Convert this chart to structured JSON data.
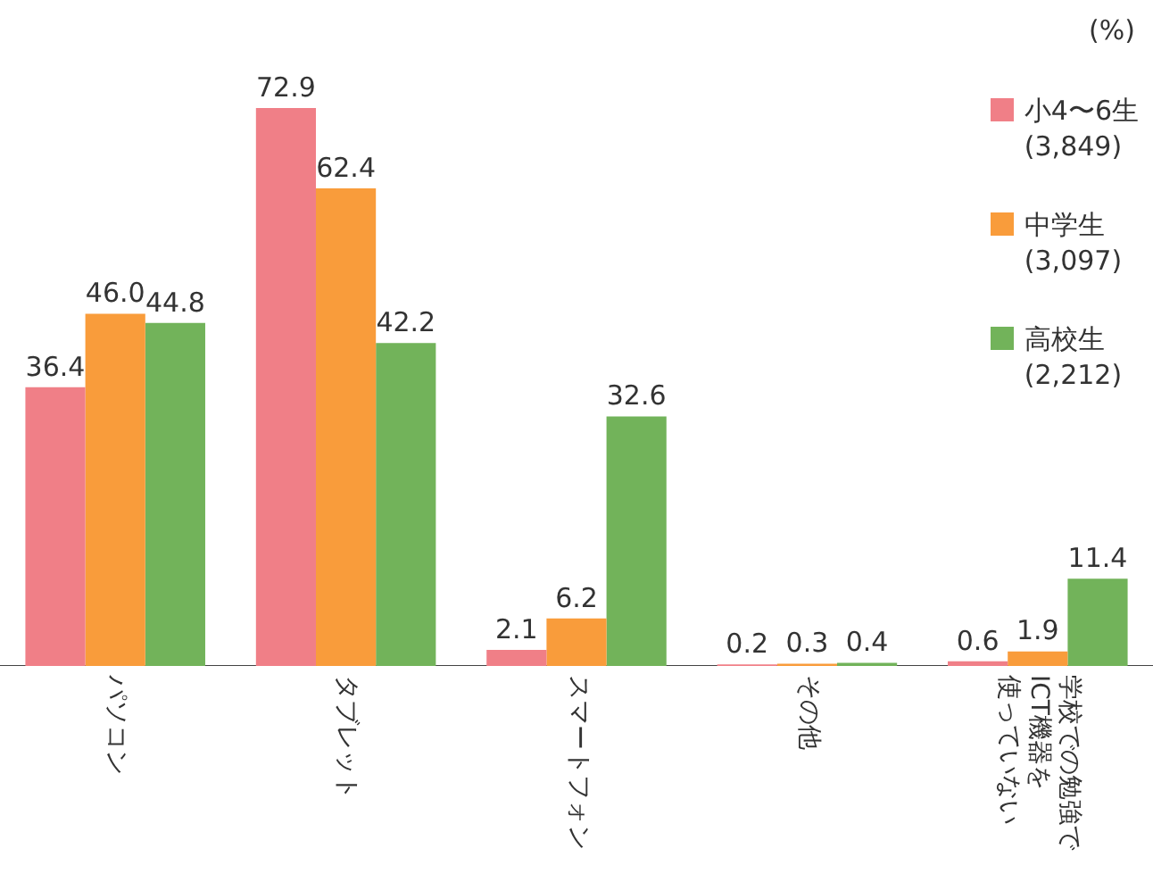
{
  "chart_data": {
    "type": "bar",
    "ylabel": "(%)",
    "categories": [
      "パソコン",
      "タブレット",
      "スマートフォン",
      "その他",
      "学校での勉強でICT機器を使っていない"
    ],
    "series": [
      {
        "name": "小4〜6生\n(3,849)",
        "color": "#f07f87",
        "values": [
          36.4,
          72.9,
          2.1,
          0.2,
          0.6
        ],
        "value_labels": [
          "36.4",
          "72.9",
          "2.1",
          "0.2",
          "0.6"
        ]
      },
      {
        "name": "中学生\n(3,097)",
        "color": "#f99c3b",
        "values": [
          46.0,
          62.4,
          6.2,
          0.3,
          1.9
        ],
        "value_labels": [
          "46.0",
          "62.4",
          "6.2",
          "0.3",
          "1.9"
        ]
      },
      {
        "name": "高校生\n(2,212)",
        "color": "#72b35a",
        "values": [
          44.8,
          42.2,
          32.6,
          0.4,
          11.4
        ],
        "value_labels": [
          "44.8",
          "42.2",
          "32.6",
          "0.4",
          "11.4"
        ]
      }
    ],
    "legend": "top right",
    "grid": false
  }
}
